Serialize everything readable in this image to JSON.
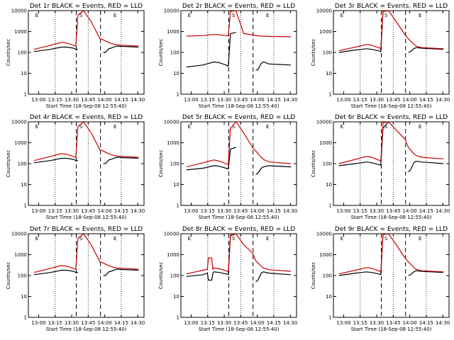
{
  "figure": {
    "x_ticks": [
      "13:00",
      "13:15",
      "13:30",
      "13:45",
      "14:00",
      "14:15",
      "14:30"
    ],
    "y_ticks": [
      "1",
      "10",
      "100",
      "1000",
      "10000"
    ],
    "xlabel": "Start Time (18-Sep-08 12:55:40)",
    "ylabel": "Counts/sec",
    "marker_labels": [
      "E",
      "S",
      "E"
    ]
  },
  "chart_data": [
    {
      "type": "line",
      "title": "Det 1r BLACK = Events, RED = LLD",
      "xlabel": "Start Time (18-Sep-08 12:55:40)",
      "ylabel": "Counts/sec",
      "ylog": true,
      "ylim": [
        1,
        10000
      ],
      "x": [
        0,
        15,
        25,
        30,
        36,
        38,
        40,
        45,
        52,
        60,
        63,
        65,
        68,
        70,
        75,
        95
      ],
      "series": [
        {
          "name": "BLACK = Events",
          "color": "#000000",
          "values": [
            110,
            140,
            180,
            180,
            160,
            140,
            140,
            null,
            null,
            null,
            100,
            100,
            150,
            160,
            200,
            180
          ]
        },
        {
          "name": "RED = LLD",
          "color": "#cc0000",
          "values": [
            140,
            220,
            300,
            280,
            220,
            200,
            6000,
            10000,
            3000,
            450,
            400,
            350,
            300,
            270,
            230,
            200
          ]
        }
      ]
    },
    {
      "type": "line",
      "title": "Det 2r BLACK = Events, RED = LLD",
      "xlabel": "Start Time (18-Sep-08 12:55:40)",
      "ylabel": "Counts/sec",
      "ylog": true,
      "ylim": [
        1,
        10000
      ],
      "x": [
        0,
        15,
        25,
        30,
        36,
        38,
        40,
        45,
        52,
        60,
        63,
        65,
        68,
        70,
        75,
        95
      ],
      "series": [
        {
          "name": "BLACK = Events",
          "color": "#000000",
          "values": [
            20,
            25,
            35,
            32,
            25,
            22,
            800,
            900,
            null,
            null,
            14,
            15,
            30,
            35,
            28,
            25
          ]
        },
        {
          "name": "RED = LLD",
          "color": "#cc0000",
          "values": [
            600,
            640,
            720,
            700,
            640,
            620,
            9000,
            10000,
            800,
            700,
            650,
            620,
            600,
            600,
            580,
            560
          ]
        }
      ]
    },
    {
      "type": "line",
      "title": "Det 3r BLACK = Events, RED = LLD",
      "xlabel": "Start Time (18-Sep-08 12:55:40)",
      "ylabel": "Counts/sec",
      "ylog": true,
      "ylim": [
        1,
        10000
      ],
      "x": [
        0,
        15,
        25,
        30,
        36,
        38,
        40,
        45,
        52,
        60,
        63,
        65,
        68,
        70,
        75,
        95
      ],
      "series": [
        {
          "name": "BLACK = Events",
          "color": "#000000",
          "values": [
            100,
            130,
            150,
            140,
            120,
            110,
            9000,
            10000,
            null,
            null,
            100,
            110,
            150,
            170,
            160,
            140
          ]
        },
        {
          "name": "RED = LLD",
          "color": "#cc0000",
          "values": [
            120,
            180,
            240,
            220,
            170,
            150,
            9500,
            10000,
            3000,
            700,
            450,
            350,
            250,
            200,
            170,
            150
          ]
        }
      ]
    },
    {
      "type": "line",
      "title": "Det 4r BLACK = Events, RED = LLD",
      "xlabel": "Start Time (18-Sep-08 12:55:40)",
      "ylabel": "Counts/sec",
      "ylog": true,
      "ylim": [
        1,
        10000
      ],
      "x": [
        0,
        15,
        25,
        30,
        36,
        38,
        40,
        45,
        52,
        60,
        63,
        65,
        68,
        70,
        75,
        95
      ],
      "series": [
        {
          "name": "BLACK = Events",
          "color": "#000000",
          "values": [
            110,
            140,
            180,
            180,
            160,
            140,
            140,
            null,
            null,
            null,
            100,
            100,
            150,
            160,
            200,
            180
          ]
        },
        {
          "name": "RED = LLD",
          "color": "#cc0000",
          "values": [
            140,
            220,
            300,
            280,
            220,
            200,
            6000,
            10000,
            3000,
            450,
            400,
            350,
            300,
            270,
            230,
            200
          ]
        }
      ]
    },
    {
      "type": "line",
      "title": "Det 5r BLACK = Events, RED = LLD",
      "xlabel": "Start Time (18-Sep-08 12:55:40)",
      "ylabel": "Counts/sec",
      "ylog": true,
      "ylim": [
        1,
        10000
      ],
      "x": [
        0,
        15,
        25,
        30,
        36,
        38,
        40,
        45,
        52,
        60,
        63,
        65,
        68,
        70,
        75,
        95
      ],
      "series": [
        {
          "name": "BLACK = Events",
          "color": "#000000",
          "values": [
            50,
            60,
            80,
            75,
            60,
            55,
            500,
            600,
            null,
            null,
            30,
            35,
            60,
            70,
            80,
            70
          ]
        },
        {
          "name": "RED = LLD",
          "color": "#cc0000",
          "values": [
            70,
            110,
            150,
            130,
            100,
            90,
            5000,
            10000,
            3000,
            600,
            400,
            300,
            200,
            160,
            120,
            100
          ]
        }
      ]
    },
    {
      "type": "line",
      "title": "Det 6r BLACK = Events, RED = LLD",
      "xlabel": "Start Time (18-Sep-08 12:55:40)",
      "ylabel": "Counts/sec",
      "ylog": true,
      "ylim": [
        1,
        10000
      ],
      "x": [
        0,
        15,
        25,
        30,
        36,
        38,
        40,
        45,
        52,
        60,
        63,
        65,
        68,
        70,
        75,
        95
      ],
      "series": [
        {
          "name": "BLACK = Events",
          "color": "#000000",
          "values": [
            80,
            100,
            120,
            110,
            90,
            85,
            5000,
            10000,
            null,
            null,
            40,
            50,
            110,
            130,
            120,
            100
          ]
        },
        {
          "name": "RED = LLD",
          "color": "#cc0000",
          "values": [
            100,
            160,
            220,
            200,
            150,
            130,
            9000,
            10000,
            4000,
            1500,
            600,
            450,
            300,
            250,
            200,
            170
          ]
        }
      ]
    },
    {
      "type": "line",
      "title": "Det 7r BLACK = Events, RED = LLD",
      "xlabel": "Start Time (18-Sep-08 12:55:40)",
      "ylabel": "Counts/sec",
      "ylog": true,
      "ylim": [
        1,
        10000
      ],
      "x": [
        0,
        15,
        25,
        30,
        36,
        38,
        40,
        45,
        52,
        60,
        63,
        65,
        68,
        70,
        75,
        95
      ],
      "series": [
        {
          "name": "BLACK = Events",
          "color": "#000000",
          "values": [
            110,
            140,
            180,
            180,
            160,
            140,
            140,
            null,
            null,
            null,
            100,
            100,
            150,
            160,
            200,
            180
          ]
        },
        {
          "name": "RED = LLD",
          "color": "#cc0000",
          "values": [
            140,
            220,
            300,
            280,
            220,
            200,
            6000,
            10000,
            3000,
            450,
            400,
            350,
            300,
            270,
            230,
            200
          ]
        }
      ]
    },
    {
      "type": "line",
      "title": "Det 8r BLACK = Events, RED = LLD",
      "xlabel": "Start Time (18-Sep-08 12:55:40)",
      "ylabel": "Counts/sec",
      "ylog": true,
      "ylim": [
        1,
        10000
      ],
      "x": [
        0,
        15,
        19,
        20,
        23,
        24,
        25,
        30,
        36,
        38,
        40,
        45,
        52,
        60,
        63,
        65,
        68,
        70,
        75,
        95
      ],
      "series": [
        {
          "name": "BLACK = Events",
          "color": "#000000",
          "values": [
            90,
            110,
            130,
            60,
            60,
            130,
            150,
            140,
            120,
            110,
            8000,
            10000,
            null,
            null,
            50,
            60,
            130,
            150,
            130,
            110
          ]
        },
        {
          "name": "RED = LLD",
          "color": "#cc0000",
          "values": [
            120,
            180,
            200,
            700,
            700,
            200,
            230,
            210,
            170,
            150,
            9500,
            10000,
            3000,
            1200,
            500,
            400,
            280,
            230,
            190,
            160
          ]
        }
      ]
    },
    {
      "type": "line",
      "title": "Det 9r BLACK = Events, RED = LLD",
      "xlabel": "Start Time (18-Sep-08 12:55:40)",
      "ylabel": "Counts/sec",
      "ylog": true,
      "ylim": [
        1,
        10000
      ],
      "x": [
        0,
        15,
        25,
        30,
        36,
        38,
        40,
        45,
        52,
        60,
        63,
        65,
        68,
        70,
        75,
        95
      ],
      "series": [
        {
          "name": "BLACK = Events",
          "color": "#000000",
          "values": [
            100,
            130,
            150,
            140,
            120,
            110,
            9000,
            10000,
            null,
            null,
            100,
            110,
            150,
            170,
            160,
            140
          ]
        },
        {
          "name": "RED = LLD",
          "color": "#cc0000",
          "values": [
            120,
            180,
            240,
            220,
            170,
            150,
            9500,
            10000,
            3000,
            700,
            450,
            350,
            250,
            200,
            170,
            150
          ]
        }
      ]
    }
  ]
}
